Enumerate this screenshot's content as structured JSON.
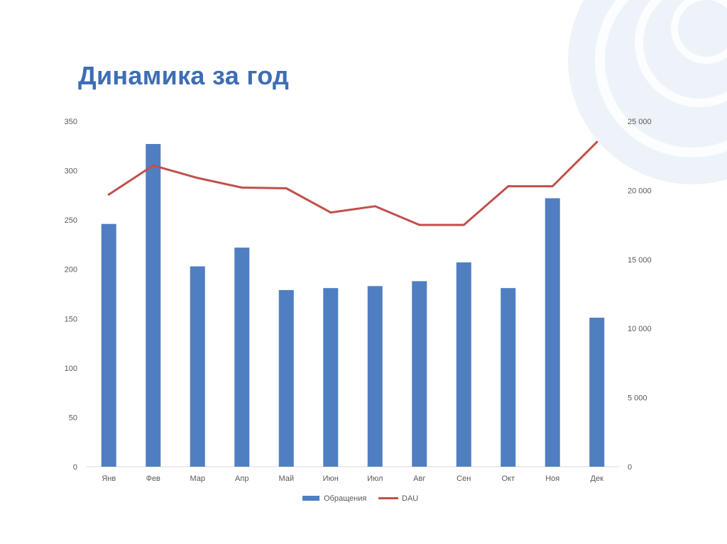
{
  "slide": {
    "title": "Динамика за год"
  },
  "colors": {
    "title": "#3e6db5",
    "bar": "#4f7fc1",
    "line": "#c0504d",
    "axis_text": "#595959",
    "axis_line": "#d9d9d9",
    "decoration": "#e3eaf3"
  },
  "chart_data": {
    "type": "bar",
    "categories": [
      "Янв",
      "Фев",
      "Мар",
      "Апр",
      "Май",
      "Июн",
      "Июл",
      "Авг",
      "Сен",
      "Окт",
      "Ноя",
      "Дек"
    ],
    "series": [
      {
        "name": "Обращения",
        "type": "bar",
        "axis": "left",
        "values": [
          246,
          327,
          203,
          222,
          179,
          181,
          183,
          188,
          207,
          181,
          272,
          151
        ]
      },
      {
        "name": "DAU",
        "type": "line",
        "axis": "right",
        "values": [
          19700,
          21800,
          20900,
          20200,
          20150,
          18400,
          18850,
          17500,
          17500,
          20300,
          20300,
          23500
        ]
      }
    ],
    "y_left": {
      "min": 0,
      "max": 350,
      "ticks": [
        "0",
        "50",
        "100",
        "150",
        "200",
        "250",
        "300",
        "350"
      ]
    },
    "y_right": {
      "min": 0,
      "max": 25000,
      "ticks": [
        "0",
        "5 000",
        "10 000",
        "15 000",
        "20 000",
        "25 000"
      ]
    },
    "grid": false,
    "legend_position": "bottom"
  }
}
